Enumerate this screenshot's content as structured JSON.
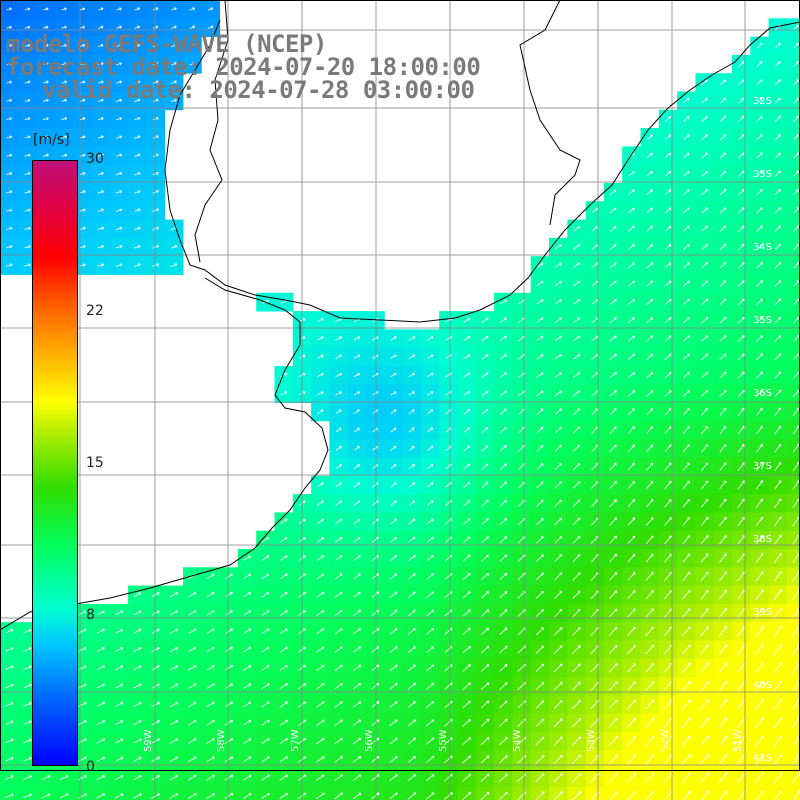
{
  "titles": {
    "line1": "modelo GEFS-WAVE (NCEP)",
    "line2": "forecast date: 2024-07-20 18:00:00",
    "line3": "valid date: 2024-07-28 03:00:00"
  },
  "colorbar": {
    "units": "[m/s]",
    "ticks": [
      "30",
      "22",
      "15",
      "8",
      "0"
    ],
    "range": [
      0,
      30
    ]
  },
  "lat_labels": [
    "32S",
    "33S",
    "34S",
    "35S",
    "36S",
    "37S",
    "38S",
    "39S",
    "40S",
    "41S"
  ],
  "lon_labels": [
    "59W",
    "58W",
    "57W",
    "56W",
    "55W",
    "54W",
    "53W",
    "52W",
    "51W"
  ],
  "colors": {
    "land": "#ffffff",
    "grid": "#888888",
    "coast": "#000000",
    "title": "#7a7a7a"
  }
}
